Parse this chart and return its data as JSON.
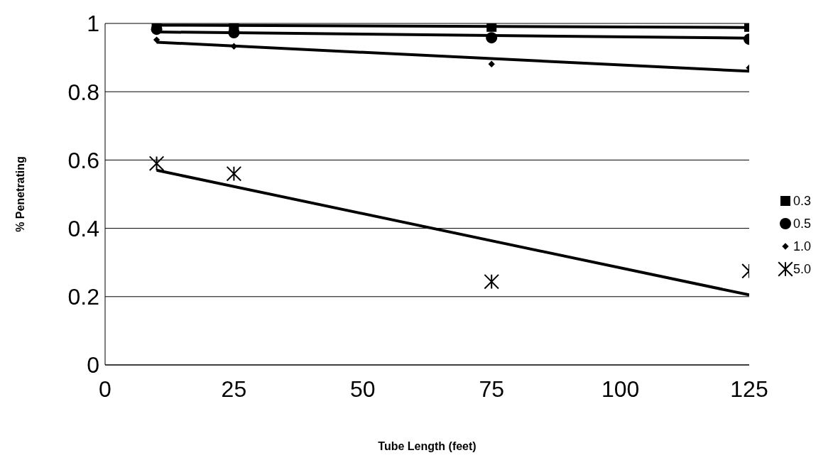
{
  "chart_data": {
    "type": "scatter",
    "xlabel": "Tube Length (feet)",
    "ylabel": "% Penetrating",
    "xlim": [
      0,
      125
    ],
    "xticks": [
      0,
      25,
      50,
      75,
      100,
      125
    ],
    "ylim": [
      0,
      1
    ],
    "yticks": [
      0,
      0.2,
      0.4,
      0.6,
      0.8,
      1
    ],
    "grid": "y",
    "legend": "right",
    "series": [
      {
        "name": "0.3",
        "marker": "square",
        "color": "#000000",
        "x": [
          10,
          25,
          75,
          125
        ],
        "values": [
          0.995,
          0.995,
          0.99,
          0.99
        ]
      },
      {
        "name": "0.5",
        "marker": "circle",
        "color": "#000000",
        "x": [
          10,
          25,
          75,
          125
        ],
        "values": [
          0.983,
          0.973,
          0.958,
          0.954
        ]
      },
      {
        "name": "1.0",
        "marker": "diamond",
        "color": "#000000",
        "x": [
          10,
          25,
          75,
          125
        ],
        "values": [
          0.952,
          0.933,
          0.881,
          0.87
        ]
      },
      {
        "name": "5.0",
        "marker": "cross",
        "color": "#000000",
        "x": [
          10,
          25,
          75,
          125
        ],
        "values": [
          0.59,
          0.56,
          0.244,
          0.275
        ]
      },
      {
        "type": "line",
        "color": "#000000",
        "x": [
          10,
          125
        ],
        "values": [
          0.995,
          0.988
        ]
      },
      {
        "type": "line",
        "color": "#000000",
        "x": [
          10,
          125
        ],
        "values": [
          0.975,
          0.957
        ]
      },
      {
        "type": "line",
        "color": "#000000",
        "x": [
          10,
          125
        ],
        "values": [
          0.945,
          0.86
        ]
      },
      {
        "type": "line",
        "color": "#000000",
        "x": [
          10,
          125
        ],
        "values": [
          0.57,
          0.205
        ]
      }
    ]
  }
}
